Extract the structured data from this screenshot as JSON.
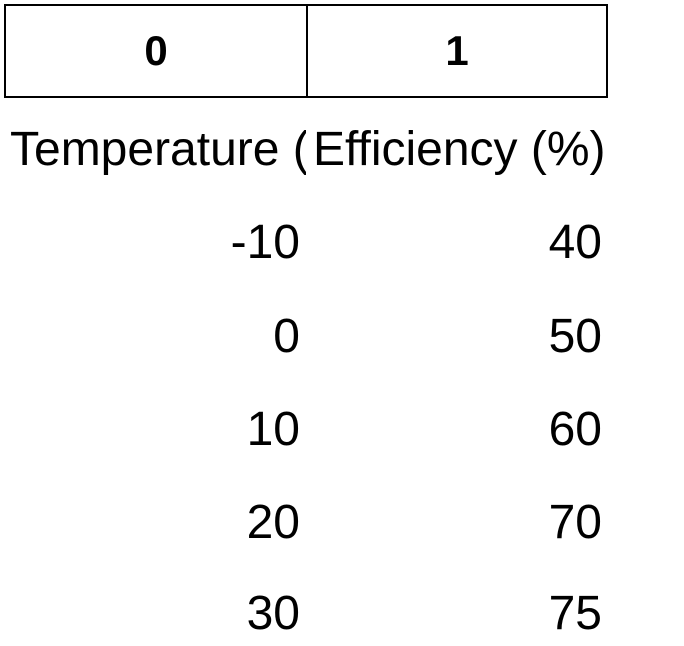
{
  "column_headers": [
    "0",
    "1"
  ],
  "table": {
    "headers": [
      "Temperature (°C)",
      "Efficiency (%)"
    ],
    "rows": [
      [
        "-10",
        "40"
      ],
      [
        "0",
        "50"
      ],
      [
        "10",
        "60"
      ],
      [
        "20",
        "70"
      ],
      [
        "30",
        "75"
      ]
    ]
  }
}
